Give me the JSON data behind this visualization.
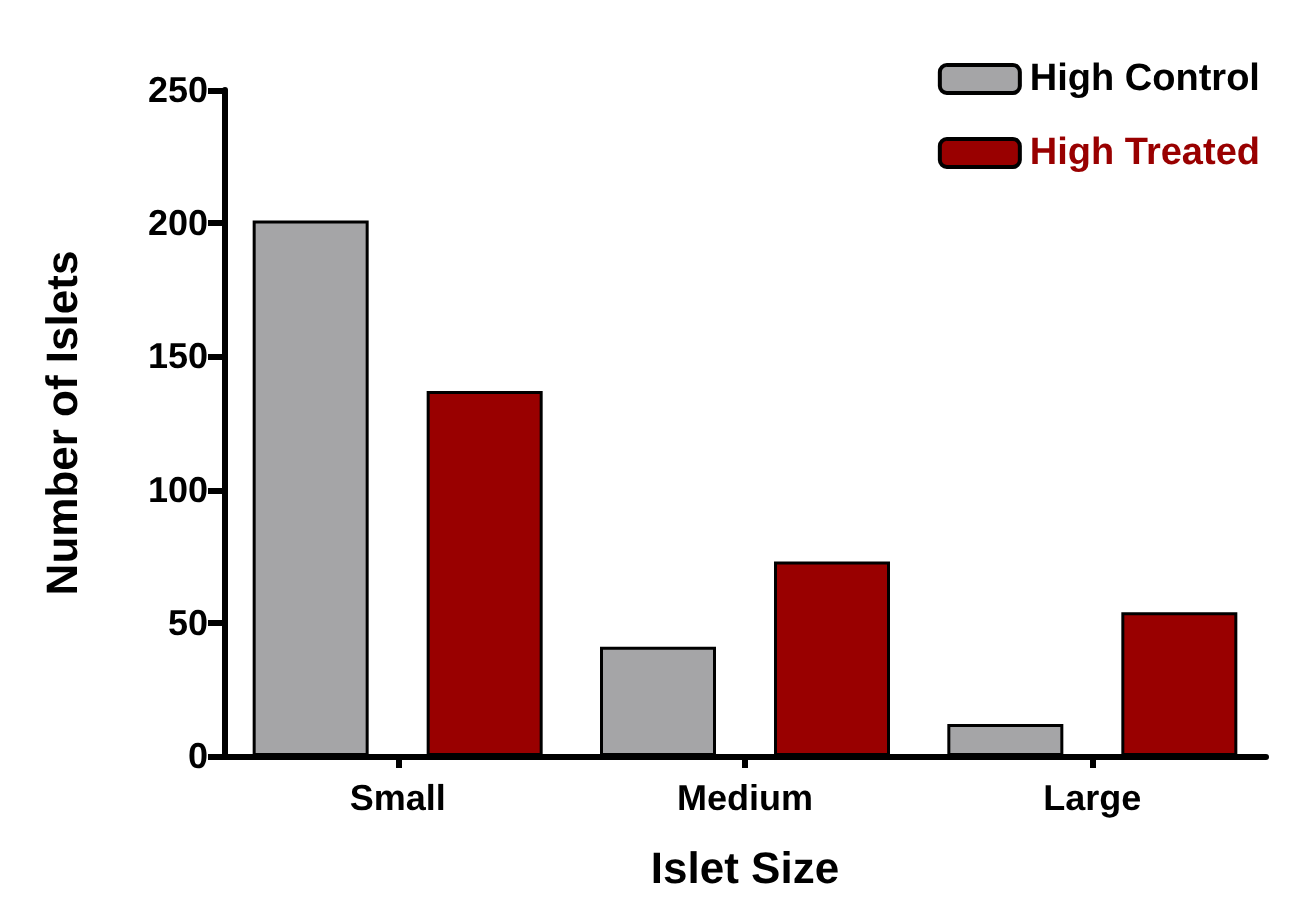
{
  "chart_data": {
    "type": "bar",
    "xlabel": "Islet Size",
    "ylabel": "Number of Islets",
    "categories": [
      "Small",
      "Medium",
      "Large"
    ],
    "series": [
      {
        "name": "High Control",
        "color": "#a5a5a7",
        "values": [
          201,
          41,
          12
        ]
      },
      {
        "name": "High Treated",
        "color": "#990000",
        "values": [
          137,
          73,
          54
        ]
      }
    ],
    "ylim": [
      0,
      250
    ],
    "yticks": [
      0,
      50,
      100,
      150,
      200,
      250
    ],
    "grid": false,
    "legend": "top right"
  }
}
